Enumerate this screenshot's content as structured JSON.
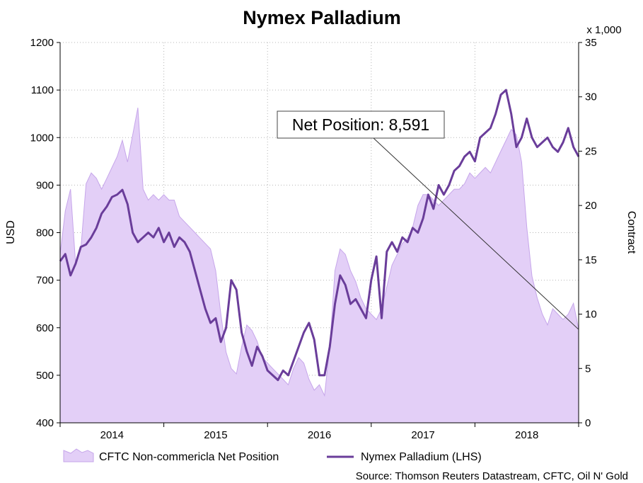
{
  "chart_data": {
    "type": "line",
    "title": "Nymex Palladium",
    "ylabel": "USD",
    "y2label": "Contract",
    "y2unit": "x 1,000",
    "ylim": [
      400,
      1200
    ],
    "y2lim": [
      0,
      35
    ],
    "yticks": [
      400,
      500,
      600,
      700,
      800,
      900,
      1000,
      1100,
      1200
    ],
    "y2ticks": [
      0,
      5,
      10,
      15,
      20,
      25,
      30,
      35
    ],
    "xlim": [
      2013.5,
      2018.5
    ],
    "year_labels": [
      "2014",
      "2015",
      "2016",
      "2017",
      "2018"
    ],
    "grid": true,
    "legend_position": "bottom",
    "annotation": {
      "text": "Net Position: 8,591",
      "target_x": 2018.5,
      "target_y": 8.591
    },
    "source": "Source: Thomson Reuters Datastream, CFTC, Oil N' Gold",
    "series": [
      {
        "name": "CFTC Non-commericla Net Position",
        "type": "area",
        "axis": "right",
        "color": "#e3cff7",
        "edge_color": "#c6a6ea",
        "x": [
          2013.5,
          2013.55,
          2013.6,
          2013.65,
          2013.7,
          2013.75,
          2013.8,
          2013.85,
          2013.9,
          2013.95,
          2014.0,
          2014.05,
          2014.1,
          2014.15,
          2014.2,
          2014.25,
          2014.3,
          2014.35,
          2014.4,
          2014.45,
          2014.5,
          2014.55,
          2014.6,
          2014.65,
          2014.7,
          2014.75,
          2014.8,
          2014.85,
          2014.9,
          2014.95,
          2015.0,
          2015.05,
          2015.1,
          2015.15,
          2015.2,
          2015.25,
          2015.3,
          2015.35,
          2015.4,
          2015.45,
          2015.5,
          2015.55,
          2015.6,
          2015.65,
          2015.7,
          2015.75,
          2015.8,
          2015.85,
          2015.9,
          2015.95,
          2016.0,
          2016.05,
          2016.1,
          2016.15,
          2016.2,
          2016.25,
          2016.3,
          2016.35,
          2016.4,
          2016.45,
          2016.5,
          2016.55,
          2016.6,
          2016.65,
          2016.7,
          2016.75,
          2016.8,
          2016.85,
          2016.9,
          2016.95,
          2017.0,
          2017.05,
          2017.1,
          2017.15,
          2017.2,
          2017.25,
          2017.3,
          2017.35,
          2017.4,
          2017.45,
          2017.5,
          2017.55,
          2017.6,
          2017.65,
          2017.7,
          2017.75,
          2017.8,
          2017.85,
          2017.9,
          2017.95,
          2018.0,
          2018.05,
          2018.1,
          2018.15,
          2018.2,
          2018.25,
          2018.3,
          2018.35,
          2018.4,
          2018.45,
          2018.5
        ],
        "values": [
          15.5,
          19.5,
          21.5,
          14.5,
          16.0,
          22.0,
          23.0,
          22.5,
          21.5,
          22.5,
          23.5,
          24.5,
          26.0,
          24.0,
          26.5,
          29.0,
          21.5,
          20.5,
          21.0,
          20.5,
          21.0,
          20.5,
          20.5,
          19.0,
          18.5,
          18.0,
          17.5,
          17.0,
          16.5,
          16.0,
          14.0,
          10.0,
          6.5,
          5.0,
          4.5,
          7.0,
          9.0,
          8.5,
          7.5,
          6.0,
          5.5,
          5.0,
          4.5,
          4.0,
          3.5,
          5.0,
          6.0,
          5.5,
          4.0,
          3.0,
          3.5,
          2.5,
          7.0,
          14.0,
          16.0,
          15.5,
          14.0,
          13.0,
          11.5,
          10.5,
          10.0,
          9.5,
          10.5,
          12.5,
          14.5,
          15.5,
          16.5,
          17.0,
          18.0,
          20.0,
          21.0,
          21.0,
          20.5,
          20.0,
          20.5,
          21.0,
          21.5,
          21.5,
          22.0,
          23.0,
          22.5,
          23.0,
          23.5,
          23.0,
          24.0,
          25.0,
          26.0,
          27.0,
          26.5,
          24.0,
          18.0,
          13.5,
          11.5,
          10.0,
          9.0,
          10.5,
          10.0,
          9.5,
          10.0,
          11.0,
          8.591
        ]
      },
      {
        "name": "Nymex Palladium (LHS)",
        "type": "line",
        "axis": "left",
        "color": "#6a3d9a",
        "x": [
          2013.5,
          2013.55,
          2013.6,
          2013.65,
          2013.7,
          2013.75,
          2013.8,
          2013.85,
          2013.9,
          2013.95,
          2014.0,
          2014.05,
          2014.1,
          2014.15,
          2014.2,
          2014.25,
          2014.3,
          2014.35,
          2014.4,
          2014.45,
          2014.5,
          2014.55,
          2014.6,
          2014.65,
          2014.7,
          2014.75,
          2014.8,
          2014.85,
          2014.9,
          2014.95,
          2015.0,
          2015.05,
          2015.1,
          2015.15,
          2015.2,
          2015.25,
          2015.3,
          2015.35,
          2015.4,
          2015.45,
          2015.5,
          2015.55,
          2015.6,
          2015.65,
          2015.7,
          2015.75,
          2015.8,
          2015.85,
          2015.9,
          2015.95,
          2016.0,
          2016.05,
          2016.1,
          2016.15,
          2016.2,
          2016.25,
          2016.3,
          2016.35,
          2016.4,
          2016.45,
          2016.5,
          2016.55,
          2016.6,
          2016.65,
          2016.7,
          2016.75,
          2016.8,
          2016.85,
          2016.9,
          2016.95,
          2017.0,
          2017.05,
          2017.1,
          2017.15,
          2017.2,
          2017.25,
          2017.3,
          2017.35,
          2017.4,
          2017.45,
          2017.5,
          2017.55,
          2017.6,
          2017.65,
          2017.7,
          2017.75,
          2017.8,
          2017.85,
          2017.9,
          2017.95,
          2018.0,
          2018.05,
          2018.1,
          2018.15,
          2018.2,
          2018.25,
          2018.3,
          2018.35,
          2018.4,
          2018.45,
          2018.5
        ],
        "values": [
          740,
          755,
          710,
          735,
          770,
          775,
          790,
          810,
          840,
          855,
          875,
          880,
          890,
          860,
          800,
          780,
          790,
          800,
          790,
          810,
          780,
          800,
          770,
          790,
          780,
          760,
          720,
          680,
          640,
          610,
          620,
          570,
          600,
          700,
          680,
          590,
          550,
          520,
          560,
          540,
          510,
          500,
          490,
          510,
          500,
          530,
          560,
          590,
          610,
          575,
          500,
          500,
          560,
          650,
          710,
          690,
          650,
          660,
          640,
          620,
          700,
          750,
          620,
          760,
          780,
          760,
          790,
          780,
          810,
          800,
          830,
          880,
          850,
          900,
          880,
          900,
          930,
          940,
          960,
          970,
          950,
          1000,
          1010,
          1020,
          1050,
          1090,
          1100,
          1050,
          980,
          1000,
          1040,
          1000,
          980,
          990,
          1000,
          980,
          970,
          990,
          1020,
          980,
          960
        ]
      }
    ]
  }
}
